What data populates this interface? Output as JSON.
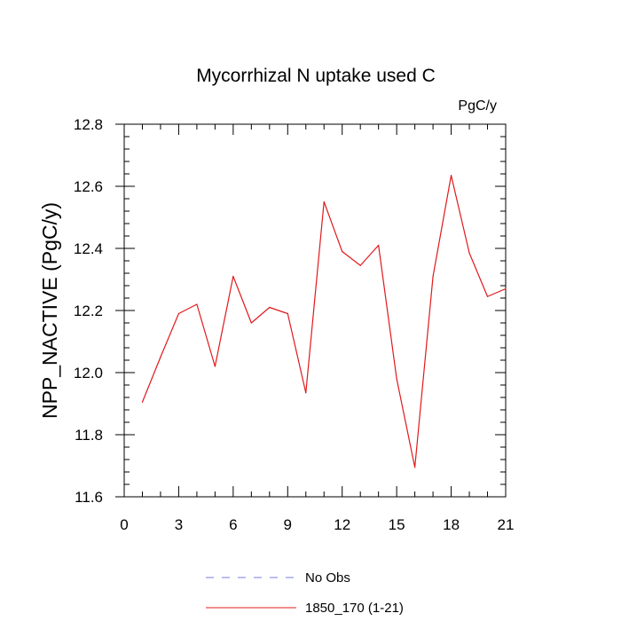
{
  "chart_data": {
    "type": "line",
    "title": "Mycorrhizal N uptake used C",
    "units_label": "PgC/y",
    "xlabel": "",
    "ylabel": "NPP_NACTIVE  (PgC/y)",
    "xlim": [
      0,
      21
    ],
    "ylim": [
      11.6,
      12.8
    ],
    "x_major_ticks": [
      0,
      3,
      6,
      9,
      12,
      15,
      18,
      21
    ],
    "x_minor_step": 1,
    "y_major_ticks": [
      11.6,
      11.8,
      12.0,
      12.2,
      12.4,
      12.6,
      12.8
    ],
    "y_tick_labels": [
      "11.6",
      "11.8",
      "12.0",
      "12.2",
      "12.4",
      "12.6",
      "12.8"
    ],
    "y_minor_step": 0.04,
    "grid": false,
    "legend_position": "bottom-center",
    "series": [
      {
        "name": "1850_170 (1-21)",
        "color": "#e0191c",
        "dash": "solid",
        "x": [
          1,
          2,
          3,
          4,
          5,
          6,
          7,
          8,
          9,
          10,
          11,
          12,
          13,
          14,
          15,
          16,
          17,
          18,
          19,
          20,
          21
        ],
        "values": [
          11.905,
          12.05,
          12.19,
          12.22,
          12.02,
          12.31,
          12.16,
          12.21,
          12.19,
          11.935,
          12.55,
          12.39,
          12.345,
          12.41,
          11.98,
          11.695,
          12.31,
          12.635,
          12.385,
          12.245,
          12.27
        ]
      }
    ],
    "legend": [
      {
        "label": "No Obs",
        "color": "#7b7bea",
        "dash": "dashed"
      },
      {
        "label": "1850_170 (1-21)",
        "color": "#e0191c",
        "dash": "solid"
      }
    ]
  }
}
